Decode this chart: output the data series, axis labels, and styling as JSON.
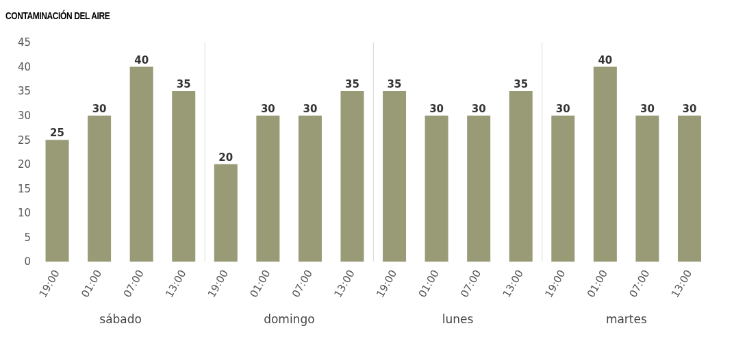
{
  "chart_data": {
    "type": "bar",
    "title": "CONTAMINACIÓN DEL AIRE",
    "categories": [
      "19:00",
      "01:00",
      "07:00",
      "13:00",
      "19:00",
      "01:00",
      "07:00",
      "13:00",
      "19:00",
      "01:00",
      "07:00",
      "13:00",
      "19:00",
      "01:00",
      "07:00",
      "13:00"
    ],
    "values": [
      25,
      30,
      40,
      35,
      20,
      30,
      30,
      35,
      35,
      30,
      30,
      35,
      30,
      40,
      30,
      30
    ],
    "color": "#999a76",
    "ylim": [
      0,
      45
    ],
    "yticks": [
      0,
      5,
      10,
      15,
      20,
      25,
      30,
      35,
      40,
      45
    ],
    "data_labels": true,
    "annotations": [
      "sábado",
      "domingo",
      "lunes",
      "martes"
    ]
  }
}
